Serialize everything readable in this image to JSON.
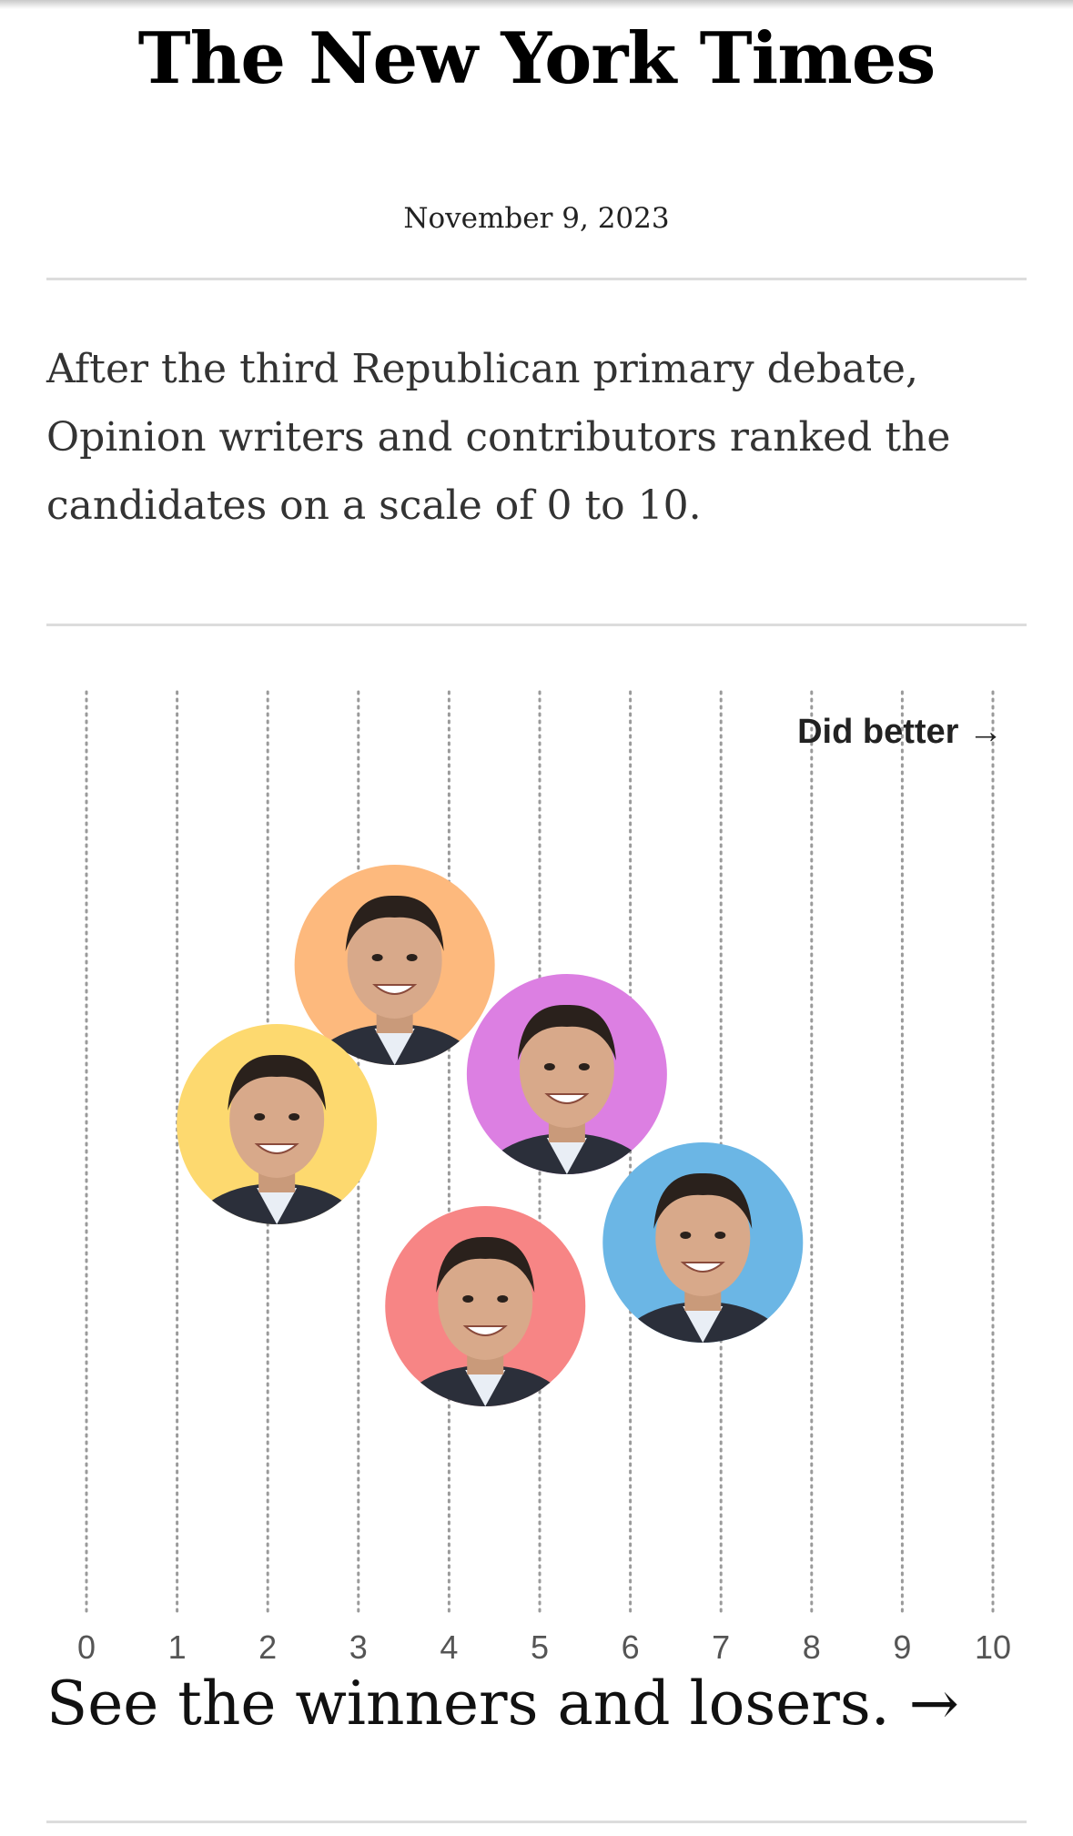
{
  "masthead": "The New York Times",
  "date": "November 9, 2023",
  "intro": "After the third Republican primary debate, Opinion writers and contributors ranked the candidates on a scale of 0 to 10.",
  "cta": "See the winners and losers. →",
  "colors": {
    "ring_scott": "#fdb97d",
    "ring_ramaswamy": "#fdd96f",
    "ring_desantis": "#dc7fe2",
    "ring_christie": "#f78585",
    "ring_haley": "#6bb6e5",
    "gridline": "#9a9a9a"
  },
  "chart_data": {
    "type": "scatter",
    "annotation": "Did better →",
    "xlim": [
      0,
      10
    ],
    "ticks": [
      0,
      1,
      2,
      3,
      4,
      5,
      6,
      7,
      8,
      9,
      10
    ],
    "grid": "vertical dotted",
    "points": [
      {
        "x": 3.4,
        "icon": "candidate-photo-1",
        "color": "#fdb97d"
      },
      {
        "x": 5.3,
        "icon": "candidate-photo-2",
        "color": "#dc7fe2"
      },
      {
        "x": 2.1,
        "icon": "candidate-photo-3",
        "color": "#fdd96f"
      },
      {
        "x": 4.4,
        "icon": "candidate-photo-4",
        "color": "#f78585"
      },
      {
        "x": 6.8,
        "icon": "candidate-photo-5",
        "color": "#6bb6e5"
      }
    ]
  }
}
